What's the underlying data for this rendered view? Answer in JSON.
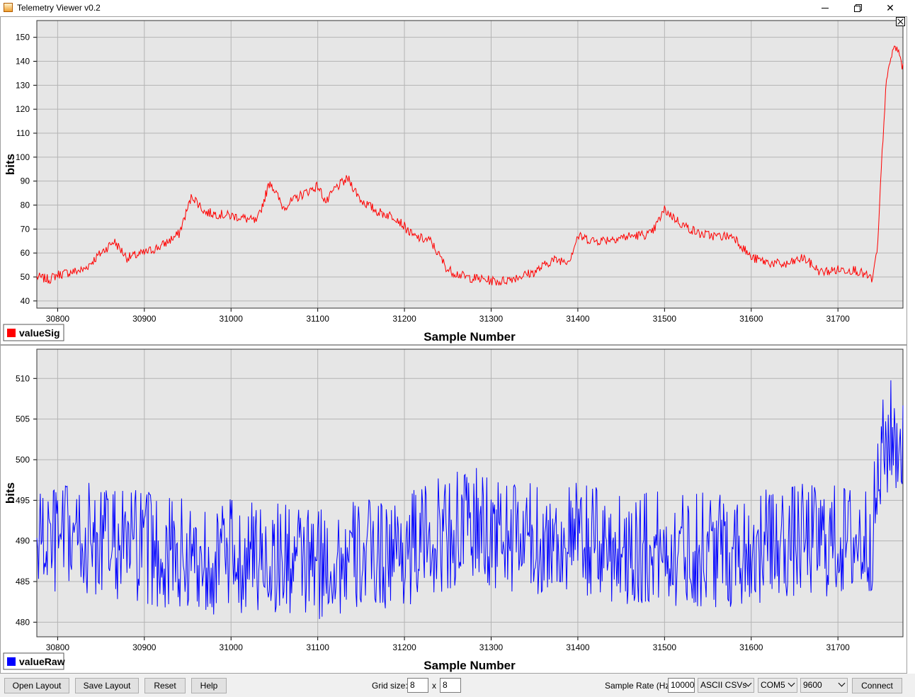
{
  "window": {
    "title": "Telemetry Viewer v0.2",
    "minimize_icon": "minimize-icon",
    "maximize_icon": "restore-icon",
    "close_icon": "close-icon"
  },
  "colors": {
    "plot_background": "#e6e6e6",
    "grid": "#b4b4b4",
    "series_sig": "#ff0000",
    "series_raw": "#0000ff"
  },
  "chart_data": [
    {
      "type": "line",
      "xlabel": "Sample Number",
      "ylabel": "bits",
      "xlim": [
        30776,
        31775
      ],
      "ylim": [
        37,
        157
      ],
      "xticks": [
        30800,
        30900,
        31000,
        31100,
        31200,
        31300,
        31400,
        31500,
        31600,
        31700
      ],
      "yticks": [
        40,
        50,
        60,
        70,
        80,
        90,
        100,
        110,
        120,
        130,
        140,
        150
      ],
      "grid": true,
      "legend": "bottom-left",
      "series": [
        {
          "name": "valueSig",
          "color": "#ff0000",
          "noise": 4,
          "x": [
            30776,
            30790,
            30800,
            30830,
            30850,
            30865,
            30880,
            30900,
            30920,
            30940,
            30955,
            30970,
            30990,
            31010,
            31030,
            31045,
            31060,
            31080,
            31100,
            31110,
            31120,
            31135,
            31150,
            31170,
            31190,
            31210,
            31230,
            31250,
            31270,
            31290,
            31310,
            31330,
            31350,
            31370,
            31390,
            31400,
            31420,
            31440,
            31460,
            31485,
            31500,
            31520,
            31540,
            31560,
            31580,
            31600,
            31620,
            31640,
            31660,
            31680,
            31700,
            31720,
            31740,
            31746,
            31750,
            31755,
            31760,
            31765,
            31770,
            31775
          ],
          "values": [
            50,
            49,
            51,
            53,
            60,
            65,
            58,
            60,
            63,
            68,
            84,
            77,
            76,
            75,
            73,
            90,
            79,
            84,
            88,
            81,
            87,
            91,
            82,
            77,
            75,
            67,
            65,
            53,
            50,
            49,
            48,
            50,
            52,
            57,
            57,
            67,
            65,
            66,
            67,
            68,
            78,
            72,
            68,
            67,
            67,
            58,
            56,
            55,
            58,
            52,
            53,
            53,
            49,
            63,
            95,
            128,
            140,
            146,
            144,
            137
          ]
        }
      ]
    },
    {
      "type": "line",
      "xlabel": "Sample Number",
      "ylabel": "bits",
      "xlim": [
        30776,
        31775
      ],
      "ylim": [
        478.2,
        513.6
      ],
      "xticks": [
        30800,
        30900,
        31000,
        31100,
        31200,
        31300,
        31400,
        31500,
        31600,
        31700
      ],
      "yticks": [
        480,
        485,
        490,
        495,
        500,
        505,
        510
      ],
      "grid": true,
      "legend": "bottom-left",
      "series": [
        {
          "name": "valueRaw",
          "color": "#0000ff",
          "noise": 11,
          "x": [
            30776,
            30800,
            30850,
            30900,
            30950,
            31000,
            31050,
            31100,
            31150,
            31200,
            31250,
            31280,
            31300,
            31350,
            31400,
            31450,
            31500,
            31550,
            31600,
            31650,
            31700,
            31730,
            31740,
            31750,
            31760,
            31775
          ],
          "values": [
            490,
            490,
            490,
            489,
            488,
            488,
            488,
            487,
            488,
            489,
            491,
            492,
            491,
            490,
            490,
            489,
            489,
            489,
            489,
            490,
            490,
            490,
            491,
            500,
            503,
            502
          ]
        }
      ]
    }
  ],
  "controls": {
    "open_layout": "Open Layout",
    "save_layout": "Save Layout",
    "reset": "Reset",
    "help": "Help",
    "grid_size_label": "Grid size:",
    "grid_cols": "8",
    "grid_x": "x",
    "grid_rows": "8",
    "sample_rate_label": "Sample Rate (Hz)",
    "sample_rate": "10000",
    "packet_type": "ASCII CSVs",
    "port": "COM5",
    "baud": "9600",
    "connect": "Connect"
  }
}
